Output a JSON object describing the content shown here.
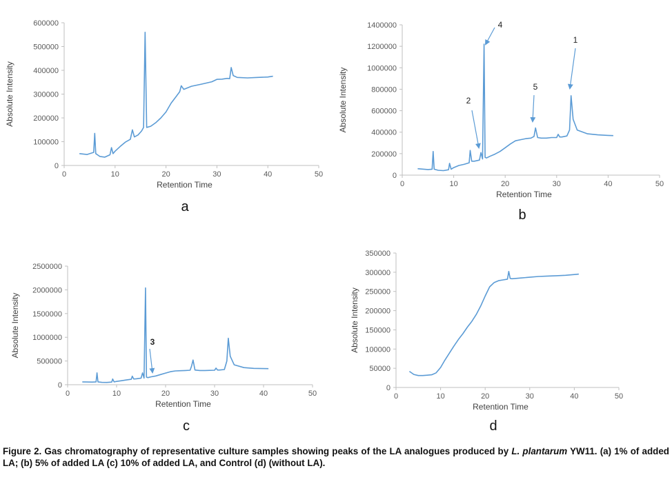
{
  "caption": {
    "part1": "Figure 2. Gas chromatography of representative culture samples showing peaks of the LA analogues produced by ",
    "species": "L. plantarum",
    "part2": " YW11. (a) 1% of added LA; (b) 5% of added LA (c) 10% of added LA, and Control (d) (without LA)."
  },
  "colors": {
    "line": "#5B9BD5",
    "axis": "#BFBFBF",
    "text": "#404040"
  },
  "chart_data": [
    {
      "id": "a",
      "panel_label": "a",
      "type": "line",
      "xlabel": "Retention Time",
      "ylabel": "Absolute Intensity",
      "xlim": [
        0,
        50
      ],
      "ylim": [
        0,
        600000
      ],
      "xticks": [
        0,
        10,
        20,
        30,
        40,
        50
      ],
      "yticks": [
        0,
        100000,
        200000,
        300000,
        400000,
        500000,
        600000
      ],
      "series": [
        {
          "x": [
            3,
            4.5,
            5.8,
            6.0,
            6.2,
            7,
            8,
            9,
            9.3,
            9.6,
            10,
            11,
            12,
            13,
            13.4,
            13.8,
            14.5,
            15.2,
            15.6,
            15.9,
            16.2,
            17,
            18,
            19,
            20,
            21,
            22,
            22.7,
            23,
            23.5,
            25,
            27,
            29,
            30,
            31,
            32,
            32.5,
            32.8,
            33.2,
            34,
            36,
            38,
            40,
            41
          ],
          "y": [
            50000,
            46000,
            55000,
            135000,
            50000,
            38000,
            35000,
            45000,
            75000,
            50000,
            60000,
            80000,
            98000,
            110000,
            150000,
            120000,
            128000,
            145000,
            160000,
            560000,
            160000,
            165000,
            180000,
            200000,
            225000,
            262000,
            290000,
            310000,
            335000,
            320000,
            333000,
            342000,
            352000,
            362000,
            363000,
            366000,
            365000,
            412000,
            378000,
            370000,
            368000,
            370000,
            372000,
            375000
          ]
        }
      ]
    },
    {
      "id": "b",
      "panel_label": "b",
      "type": "line",
      "xlabel": "Retention Time",
      "ylabel": "Absolute Intensity",
      "xlim": [
        0,
        50
      ],
      "ylim": [
        0,
        1400000
      ],
      "xticks": [
        0,
        10,
        20,
        30,
        40,
        50
      ],
      "yticks": [
        0,
        200000,
        400000,
        600000,
        800000,
        1000000,
        1200000,
        1400000
      ],
      "annotations": [
        "1",
        "2",
        "3",
        "4",
        "5"
      ],
      "series": [
        {
          "x": [
            3,
            5,
            5.8,
            6.0,
            6.2,
            7,
            8,
            9,
            9.2,
            9.5,
            10,
            11,
            12,
            13,
            13.2,
            13.5,
            14,
            15,
            15.3,
            15.6,
            15.9,
            16.1,
            16.4,
            17,
            18,
            19,
            20,
            21,
            22,
            23,
            24,
            25,
            25.6,
            25.9,
            26.3,
            27,
            28,
            29,
            30,
            30.3,
            30.6,
            31,
            32,
            32.5,
            32.8,
            33.2,
            34,
            36,
            38,
            40,
            41
          ],
          "y": [
            60000,
            52000,
            55000,
            220000,
            55000,
            45000,
            42000,
            50000,
            110000,
            55000,
            70000,
            90000,
            100000,
            115000,
            230000,
            130000,
            130000,
            140000,
            210000,
            150000,
            1220000,
            165000,
            160000,
            175000,
            195000,
            220000,
            255000,
            290000,
            320000,
            330000,
            340000,
            345000,
            360000,
            440000,
            350000,
            345000,
            345000,
            350000,
            350000,
            380000,
            355000,
            355000,
            365000,
            420000,
            740000,
            520000,
            420000,
            385000,
            375000,
            370000,
            368000
          ]
        }
      ]
    },
    {
      "id": "c",
      "panel_label": "c",
      "type": "line",
      "xlabel": "Retention Time",
      "ylabel": "Absolute Intensity",
      "xlim": [
        0,
        50
      ],
      "ylim": [
        0,
        2500000
      ],
      "xticks": [
        0,
        10,
        20,
        30,
        40,
        50
      ],
      "yticks": [
        0,
        500000,
        1000000,
        1500000,
        2000000,
        2500000
      ],
      "series": [
        {
          "x": [
            3,
            5,
            5.8,
            6.0,
            6.2,
            7,
            8,
            9,
            9.2,
            9.5,
            10,
            11,
            12,
            13,
            13.2,
            13.5,
            14,
            15,
            15.3,
            15.6,
            15.9,
            16.1,
            16.4,
            17,
            18,
            19,
            20,
            21,
            22,
            23,
            24,
            25,
            25.3,
            25.6,
            26,
            27,
            28,
            29,
            30,
            30.3,
            30.6,
            31,
            32,
            32.5,
            32.8,
            33.2,
            34,
            36,
            38,
            40,
            41
          ],
          "y": [
            60000,
            55000,
            60000,
            250000,
            60000,
            50000,
            48000,
            55000,
            120000,
            60000,
            70000,
            85000,
            100000,
            115000,
            180000,
            120000,
            125000,
            140000,
            250000,
            140000,
            2040000,
            160000,
            150000,
            165000,
            185000,
            215000,
            245000,
            275000,
            290000,
            295000,
            300000,
            305000,
            390000,
            520000,
            310000,
            300000,
            300000,
            302000,
            305000,
            350000,
            310000,
            310000,
            320000,
            500000,
            980000,
            600000,
            420000,
            360000,
            345000,
            340000,
            338000
          ]
        }
      ]
    },
    {
      "id": "d",
      "panel_label": "d",
      "type": "line",
      "xlabel": "Retention Time",
      "ylabel": "Absolute Intensity",
      "xlim": [
        0,
        50
      ],
      "ylim": [
        0,
        350000
      ],
      "xticks": [
        0,
        10,
        20,
        30,
        40,
        50
      ],
      "yticks": [
        0,
        50000,
        100000,
        150000,
        200000,
        250000,
        300000,
        350000
      ],
      "series": [
        {
          "x": [
            3,
            4,
            5,
            6,
            7,
            8,
            9,
            10,
            11,
            12,
            13,
            14,
            15,
            16,
            17,
            18,
            19,
            20,
            21,
            22,
            23,
            24,
            25,
            25.3,
            25.6,
            26,
            28,
            30,
            32,
            34,
            36,
            38,
            40,
            41
          ],
          "y": [
            42000,
            34000,
            31000,
            31000,
            32000,
            33000,
            38000,
            52000,
            72000,
            90000,
            108000,
            125000,
            140000,
            157000,
            172000,
            190000,
            212000,
            238000,
            262000,
            273000,
            278000,
            280000,
            282000,
            302000,
            284000,
            283000,
            285000,
            287000,
            289000,
            290000,
            291000,
            292000,
            294000,
            295000
          ]
        }
      ]
    }
  ]
}
